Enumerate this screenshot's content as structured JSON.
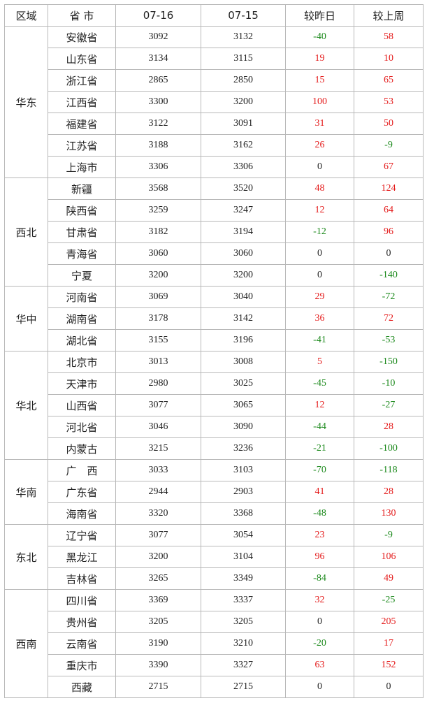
{
  "table": {
    "header": [
      "区域",
      "省 市",
      "07-16",
      "07-15",
      "较昨日",
      "较上周"
    ],
    "groups": [
      {
        "region": "华东",
        "rows": [
          [
            "安徽省",
            "3092",
            "3132",
            "-40",
            "58"
          ],
          [
            "山东省",
            "3134",
            "3115",
            "19",
            "10"
          ],
          [
            "浙江省",
            "2865",
            "2850",
            "15",
            "65"
          ],
          [
            "江西省",
            "3300",
            "3200",
            "100",
            "53"
          ],
          [
            "福建省",
            "3122",
            "3091",
            "31",
            "50"
          ],
          [
            "江苏省",
            "3188",
            "3162",
            "26",
            "-9"
          ],
          [
            "上海市",
            "3306",
            "3306",
            "0",
            "67"
          ]
        ]
      },
      {
        "region": "西北",
        "rows": [
          [
            "新疆",
            "3568",
            "3520",
            "48",
            "124"
          ],
          [
            "陕西省",
            "3259",
            "3247",
            "12",
            "64"
          ],
          [
            "甘肃省",
            "3182",
            "3194",
            "-12",
            "96"
          ],
          [
            "青海省",
            "3060",
            "3060",
            "0",
            "0"
          ],
          [
            "宁夏",
            "3200",
            "3200",
            "0",
            "-140"
          ]
        ]
      },
      {
        "region": "华中",
        "rows": [
          [
            "河南省",
            "3069",
            "3040",
            "29",
            "-72"
          ],
          [
            "湖南省",
            "3178",
            "3142",
            "36",
            "72"
          ],
          [
            "湖北省",
            "3155",
            "3196",
            "-41",
            "-53"
          ]
        ]
      },
      {
        "region": "华北",
        "rows": [
          [
            "北京市",
            "3013",
            "3008",
            "5",
            "-150"
          ],
          [
            "天津市",
            "2980",
            "3025",
            "-45",
            "-10"
          ],
          [
            "山西省",
            "3077",
            "3065",
            "12",
            "-27"
          ],
          [
            "河北省",
            "3046",
            "3090",
            "-44",
            "28"
          ],
          [
            "内蒙古",
            "3215",
            "3236",
            "-21",
            "-100"
          ]
        ]
      },
      {
        "region": "华南",
        "rows": [
          [
            "广　西",
            "3033",
            "3103",
            "-70",
            "-118"
          ],
          [
            "广东省",
            "2944",
            "2903",
            "41",
            "28"
          ],
          [
            "海南省",
            "3320",
            "3368",
            "-48",
            "130"
          ]
        ]
      },
      {
        "region": "东北",
        "rows": [
          [
            "辽宁省",
            "3077",
            "3054",
            "23",
            "-9"
          ],
          [
            "黑龙江",
            "3200",
            "3104",
            "96",
            "106"
          ],
          [
            "吉林省",
            "3265",
            "3349",
            "-84",
            "49"
          ]
        ]
      },
      {
        "region": "西南",
        "rows": [
          [
            "四川省",
            "3369",
            "3337",
            "32",
            "-25"
          ],
          [
            "贵州省",
            "3205",
            "3205",
            "0",
            "205"
          ],
          [
            "云南省",
            "3190",
            "3210",
            "-20",
            "17"
          ],
          [
            "重庆市",
            "3390",
            "3327",
            "63",
            "152"
          ],
          [
            "西藏",
            "2715",
            "2715",
            "0",
            "0"
          ]
        ]
      }
    ]
  }
}
